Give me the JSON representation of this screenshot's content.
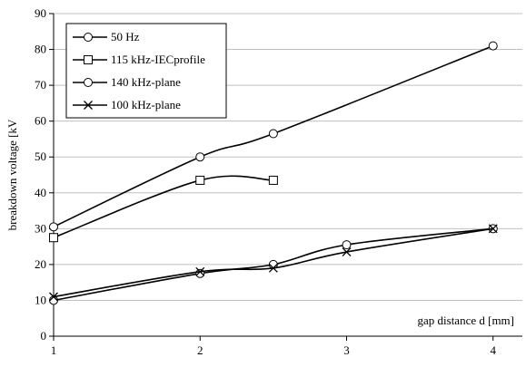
{
  "chart_data": {
    "type": "line",
    "title": "",
    "xlabel": "gap distance d [mm]",
    "ylabel": "breakdown voltage [kV",
    "xlim": [
      1,
      4.2
    ],
    "ylim": [
      0,
      90
    ],
    "x_ticks": [
      "1",
      "2",
      "3",
      "4"
    ],
    "y_ticks": [
      "0",
      "10",
      "20",
      "30",
      "40",
      "50",
      "60",
      "70",
      "80",
      "90"
    ],
    "grid": "horizontal",
    "legend_position": "top-left",
    "series": [
      {
        "name": "50 Hz",
        "marker": "circle",
        "x": [
          1,
          2,
          2.5,
          4
        ],
        "y": [
          30.5,
          50,
          56.5,
          81
        ]
      },
      {
        "name": "115 kHz-IECprofile",
        "marker": "square",
        "x": [
          1,
          2,
          2.5
        ],
        "y": [
          27.5,
          43.5,
          43.5
        ]
      },
      {
        "name": "140 kHz-plane",
        "marker": "circle",
        "x": [
          1,
          2,
          2.5,
          3,
          4
        ],
        "y": [
          10,
          17.5,
          20,
          25.5,
          30
        ]
      },
      {
        "name": "100 kHz-plane",
        "marker": "x",
        "x": [
          1,
          2,
          2.5,
          3,
          4
        ],
        "y": [
          11,
          18,
          19,
          23.5,
          30
        ]
      }
    ]
  }
}
